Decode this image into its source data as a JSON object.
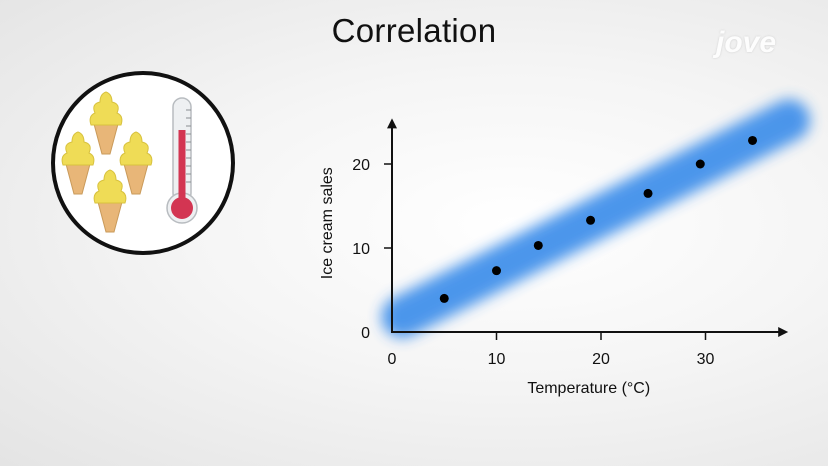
{
  "page": {
    "title": "Correlation",
    "logo_text": "jove"
  },
  "illustration": {
    "icons": [
      "ice-cream-cone-icon",
      "ice-cream-cone-icon",
      "ice-cream-cone-icon",
      "ice-cream-cone-icon",
      "thermometer-icon"
    ]
  },
  "colors": {
    "trend_band": "#3d8eea",
    "points": "#000000",
    "cone": "#e8b678",
    "ice_cream": "#efdc56",
    "thermometer_red": "#d33552"
  },
  "chart_data": {
    "type": "scatter",
    "title": "",
    "xlabel": "Temperature (°C)",
    "ylabel": "Ice cream sales",
    "xlim": [
      0,
      36
    ],
    "ylim": [
      0,
      24
    ],
    "xticks": [
      0,
      10,
      20,
      30
    ],
    "yticks": [
      0,
      10,
      20
    ],
    "grid": false,
    "series": [
      {
        "points": [
          {
            "x": 5,
            "y": 4
          },
          {
            "x": 10,
            "y": 7.3
          },
          {
            "x": 14,
            "y": 10.3
          },
          {
            "x": 19,
            "y": 13.3
          },
          {
            "x": 24.5,
            "y": 16.5
          },
          {
            "x": 29.5,
            "y": 20
          },
          {
            "x": 34.5,
            "y": 22.8
          }
        ]
      }
    ],
    "trend_band": {
      "from": [
        1,
        1.8
      ],
      "to": [
        38,
        25.2
      ]
    }
  }
}
